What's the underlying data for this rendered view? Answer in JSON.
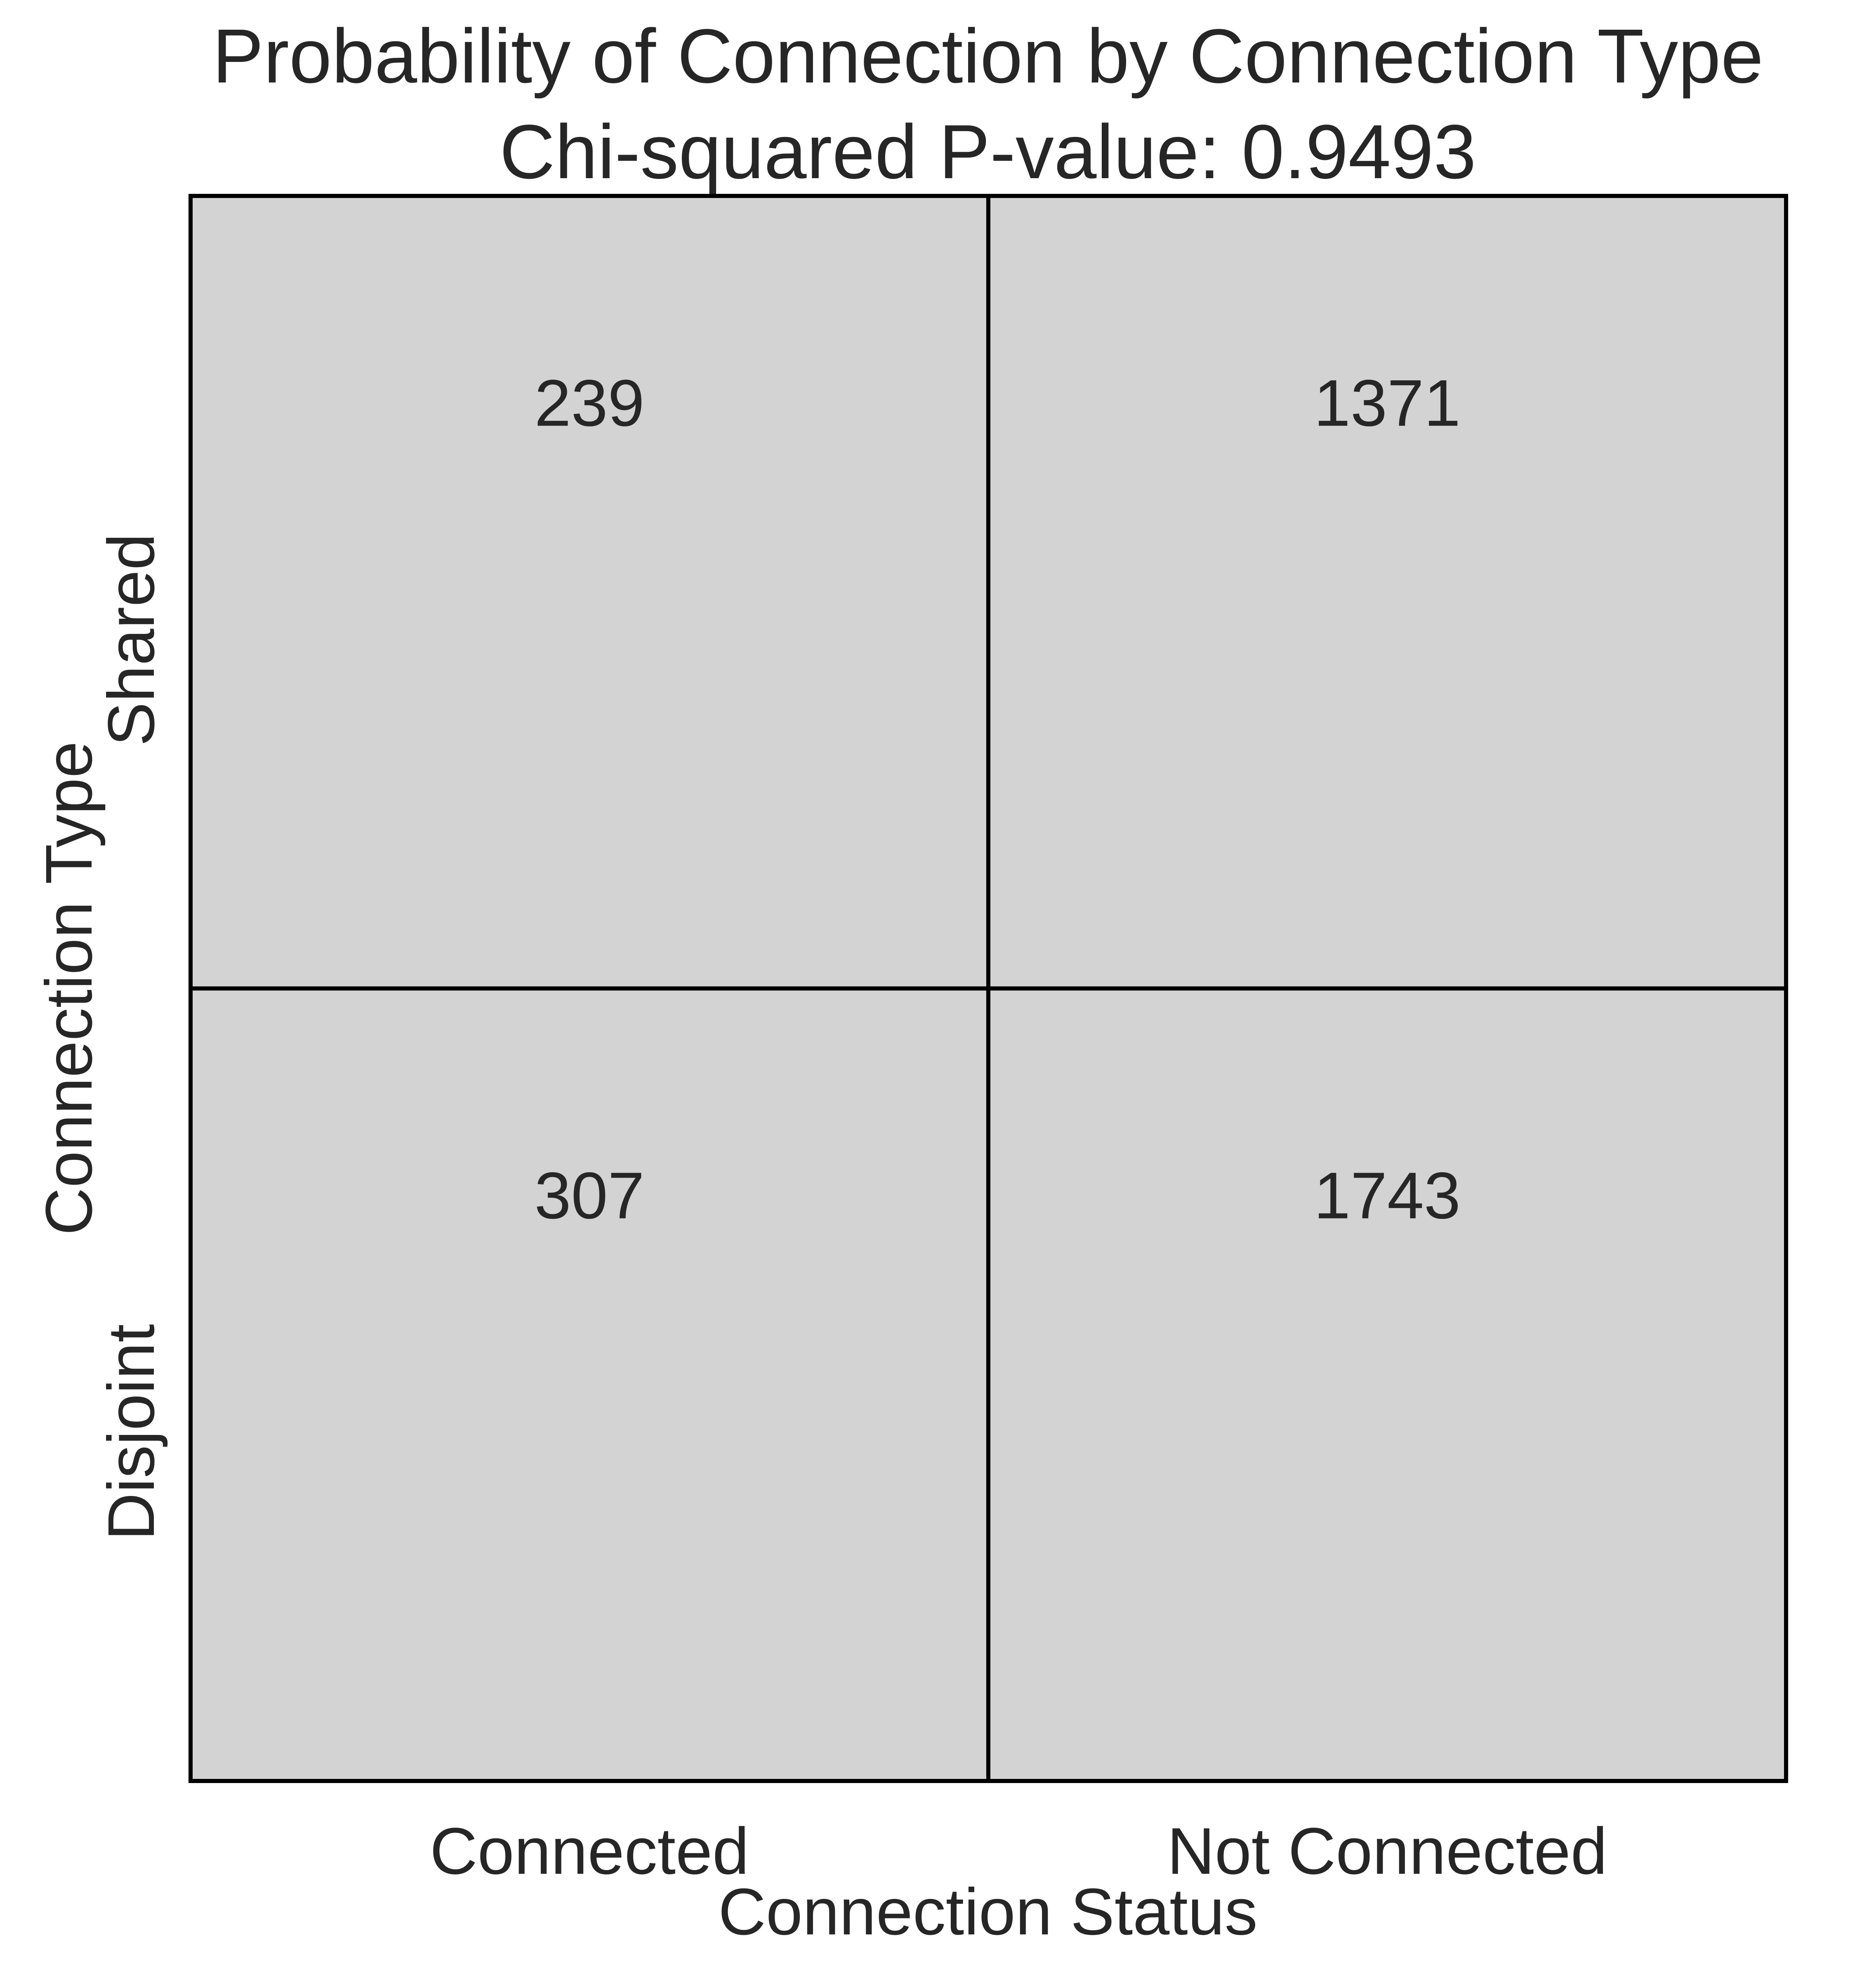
{
  "chart_data": {
    "type": "heatmap",
    "title": "Probability of Connection by Connection Type",
    "subtitle": "Chi-squared P-value: 0.9493",
    "xlabel": "Connection Status",
    "ylabel": "Connection Type",
    "x_categories": [
      "Connected",
      "Not Connected"
    ],
    "y_categories": [
      "Shared",
      "Disjoint"
    ],
    "values": [
      [
        239,
        1371
      ],
      [
        307,
        1743
      ]
    ],
    "grid": false,
    "colors": {
      "cell": "#d3d3d3",
      "border": "#000000",
      "text": "#262626"
    }
  }
}
